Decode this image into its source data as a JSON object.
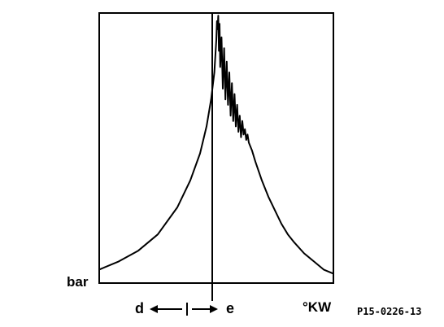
{
  "chart_data": {
    "type": "line",
    "title": "",
    "xlabel": "°KW",
    "ylabel": "bar",
    "grid": false,
    "legend": "none",
    "xlim": [
      -180,
      180
    ],
    "ylim": [
      0,
      100
    ],
    "reference_line_x": 0,
    "direction_labels": {
      "left": "d",
      "right": "e"
    },
    "figure_code": "P15-0226-13",
    "series": [
      {
        "x": [
          -180,
          -150,
          -120,
          -90,
          -60,
          -40,
          -25,
          -15,
          -8,
          -3,
          0,
          1,
          2,
          3,
          4,
          5,
          6,
          8,
          10,
          12,
          14,
          16,
          18,
          20,
          22,
          24,
          26,
          28,
          30,
          32,
          34,
          36,
          38,
          40,
          42,
          44,
          46,
          48,
          50,
          55,
          60,
          70,
          80,
          90,
          100,
          110,
          120,
          135,
          150,
          165,
          180
        ],
        "y": [
          5,
          8,
          12,
          18,
          28,
          38,
          48,
          58,
          68,
          78,
          90,
          97,
          94,
          99,
          86,
          96,
          80,
          91,
          72,
          87,
          68,
          82,
          66,
          78,
          62,
          74,
          60,
          70,
          58,
          66,
          56,
          62,
          54,
          60,
          55,
          57,
          53,
          55,
          52,
          49,
          45,
          38,
          32,
          27,
          22,
          18,
          15,
          11,
          8,
          5,
          3.5
        ]
      }
    ]
  }
}
